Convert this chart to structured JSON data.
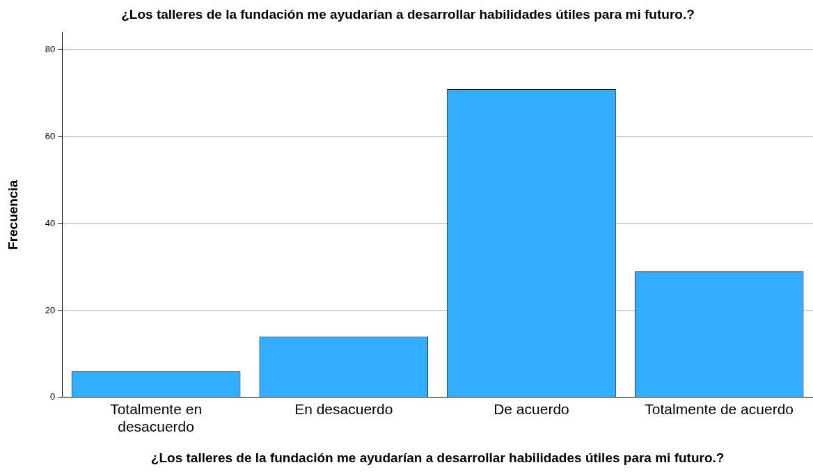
{
  "chart_data": {
    "type": "bar",
    "title": "¿Los talleres de la fundación me ayudarían a desarrollar habilidades útiles para mi futuro.?",
    "xlabel": "¿Los talleres de la fundación me ayudarían a desarrollar habilidades útiles para mi futuro.?",
    "ylabel": "Frecuencia",
    "categories": [
      "Totalmente en desacuerdo",
      "En desacuerdo",
      "De acuerdo",
      "Totalmente de acuerdo"
    ],
    "values": [
      6,
      14,
      71,
      29
    ],
    "color": "#33adff",
    "ylim": [
      0,
      84
    ],
    "yticks": [
      0,
      20,
      40,
      60,
      80
    ],
    "grid": "y",
    "legend": false
  }
}
